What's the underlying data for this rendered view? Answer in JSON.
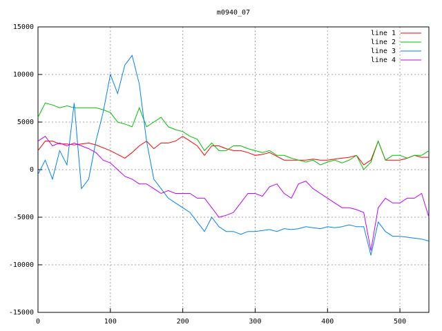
{
  "chart_data": {
    "type": "line",
    "title": "m0940_07",
    "x": [
      0,
      10,
      20,
      30,
      40,
      50,
      60,
      70,
      80,
      90,
      100,
      110,
      120,
      130,
      140,
      150,
      160,
      170,
      180,
      190,
      200,
      210,
      220,
      230,
      240,
      250,
      260,
      270,
      280,
      290,
      300,
      310,
      320,
      330,
      340,
      350,
      360,
      370,
      380,
      390,
      400,
      410,
      420,
      430,
      440,
      450,
      460,
      470,
      480,
      490,
      500,
      510,
      520,
      530,
      540
    ],
    "series": [
      {
        "name": "line 1",
        "color": "#ff0000",
        "values": [
          2000,
          3000,
          3000,
          2700,
          2700,
          2600,
          2700,
          2800,
          2600,
          2300,
          2000,
          1600,
          1200,
          1800,
          2500,
          3000,
          2200,
          2800,
          2800,
          3000,
          3500,
          3000,
          2500,
          1500,
          2500,
          2500,
          2200,
          2000,
          2000,
          1800,
          1500,
          1600,
          1800,
          1400,
          1000,
          1000,
          1000,
          1000,
          1100,
          1000,
          1000,
          1100,
          1200,
          1300,
          1500,
          500,
          1000,
          3000,
          1000,
          1000,
          1000,
          1200,
          1500,
          1300,
          1300
        ]
      },
      {
        "name": "line 2",
        "color": "#00c000",
        "values": [
          5500,
          7000,
          6800,
          6500,
          6700,
          6500,
          6500,
          6500,
          6500,
          6300,
          6000,
          5000,
          4800,
          4500,
          6500,
          4500,
          5000,
          5500,
          4500,
          4200,
          4000,
          3500,
          3200,
          2000,
          2800,
          2000,
          2000,
          2500,
          2500,
          2200,
          2000,
          1800,
          2000,
          1500,
          1500,
          1200,
          1000,
          800,
          1000,
          500,
          800,
          1000,
          700,
          1000,
          1500,
          0,
          800,
          3000,
          1000,
          1500,
          1500,
          1200,
          1500,
          1500,
          2000
        ]
      },
      {
        "name": "line 3",
        "color": "#0080ff",
        "values": [
          -500,
          1000,
          -1000,
          2000,
          500,
          7000,
          -2000,
          -1000,
          3000,
          6000,
          10000,
          8000,
          11000,
          12000,
          9000,
          3000,
          -1000,
          -2000,
          -3000,
          -3500,
          -4000,
          -4500,
          -5500,
          -6500,
          -5000,
          -6000,
          -6500,
          -6500,
          -6800,
          -6500,
          -6500,
          -6400,
          -6300,
          -6500,
          -6200,
          -6300,
          -6200,
          -6000,
          -6100,
          -6200,
          -6000,
          -6100,
          -6000,
          -5800,
          -6000,
          -6000,
          -9000,
          -5500,
          -6500,
          -7000,
          -7000,
          -7100,
          -7200,
          -7300,
          -7500
        ]
      },
      {
        "name": "line 4",
        "color": "#c000ff",
        "values": [
          3000,
          3500,
          2500,
          2800,
          2500,
          2800,
          2500,
          2200,
          1800,
          1000,
          700,
          0,
          -700,
          -1000,
          -1500,
          -1500,
          -2000,
          -2500,
          -2200,
          -2500,
          -2500,
          -2500,
          -3000,
          -3000,
          -4000,
          -5000,
          -4800,
          -4500,
          -3500,
          -2500,
          -2500,
          -2800,
          -1800,
          -1500,
          -2500,
          -3000,
          -1500,
          -1200,
          -2000,
          -2500,
          -3000,
          -3500,
          -4000,
          -4000,
          -4200,
          -4500,
          -8500,
          -4000,
          -3000,
          -3500,
          -3500,
          -3000,
          -3000,
          -2500,
          -5000
        ]
      }
    ],
    "xlim": [
      0,
      540
    ],
    "xticks": [
      0,
      100,
      200,
      300,
      400,
      500
    ],
    "ylim": [
      -15000,
      15000
    ],
    "yticks": [
      -15000,
      -10000,
      -5000,
      0,
      5000,
      10000,
      15000
    ],
    "grid": true,
    "legend": "top-right"
  }
}
